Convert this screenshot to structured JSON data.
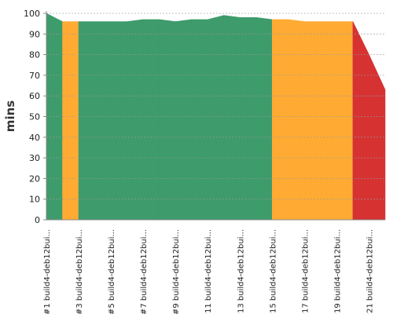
{
  "chart_data": {
    "type": "area",
    "ylabel": "mins",
    "xlabel": "",
    "ylim": [
      0,
      100
    ],
    "yticks": [
      0,
      10,
      20,
      30,
      40,
      50,
      60,
      70,
      80,
      90,
      100
    ],
    "grid": true,
    "x_tick_labels": [
      "#1 build4-deb12bui...",
      "#3 build4-deb12bui...",
      "#5 build4-deb12bui...",
      "#7 build4-deb12bui...",
      "#9 build4-deb12bui...",
      "#11 build4-deb12bui...",
      "#13 build4-deb12bui...",
      "#15 build4-deb12bui...",
      "#17 build4-deb12bui...",
      "#19 build4-deb12bui...",
      "#21 build4-deb12bui..."
    ],
    "points": [
      {
        "build": 1,
        "value": 100,
        "status": "success"
      },
      {
        "build": 2,
        "value": 96,
        "status": "success"
      },
      {
        "build": 3,
        "value": 96,
        "status": "unstable"
      },
      {
        "build": 4,
        "value": 96,
        "status": "success"
      },
      {
        "build": 5,
        "value": 96,
        "status": "success"
      },
      {
        "build": 6,
        "value": 96,
        "status": "success"
      },
      {
        "build": 7,
        "value": 97,
        "status": "success"
      },
      {
        "build": 8,
        "value": 97,
        "status": "success"
      },
      {
        "build": 9,
        "value": 96,
        "status": "success"
      },
      {
        "build": 10,
        "value": 97,
        "status": "success"
      },
      {
        "build": 11,
        "value": 97,
        "status": "success"
      },
      {
        "build": 12,
        "value": 99,
        "status": "success"
      },
      {
        "build": 13,
        "value": 98,
        "status": "success"
      },
      {
        "build": 14,
        "value": 98,
        "status": "success"
      },
      {
        "build": 15,
        "value": 97,
        "status": "success"
      },
      {
        "build": 16,
        "value": 97,
        "status": "unstable"
      },
      {
        "build": 17,
        "value": 96,
        "status": "unstable"
      },
      {
        "build": 18,
        "value": 96,
        "status": "unstable"
      },
      {
        "build": 19,
        "value": 96,
        "status": "unstable"
      },
      {
        "build": 20,
        "value": 96,
        "status": "unstable"
      },
      {
        "build": 21,
        "value": 80,
        "status": "failed"
      },
      {
        "build": 22,
        "value": 63,
        "status": "failed"
      }
    ],
    "colors": {
      "success": "#3e9b6b",
      "unstable": "#ffab33",
      "failed": "#d63232",
      "grid": "#9a9a9a",
      "axis": "#888888"
    }
  }
}
